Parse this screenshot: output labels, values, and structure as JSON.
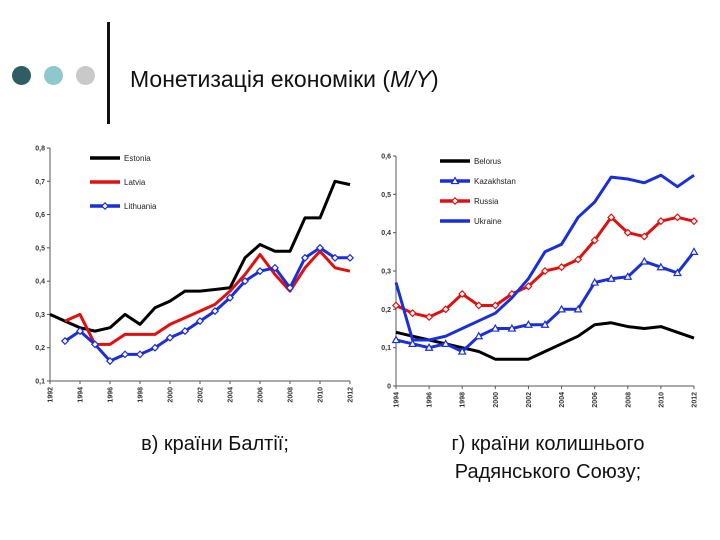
{
  "slide": {
    "title_prefix": "Монетизація економіки (",
    "title_math": "M/Y",
    "title_suffix": ")",
    "caption_left": "в) країни Балтії;",
    "caption_right_line1": "г) країни колишнього",
    "caption_right_line2": "Радянського Союзу;"
  },
  "colors": {
    "dot1": "#2e5e63",
    "dot2": "#8ec7cc",
    "dot3": "#c9c9c9",
    "black": "#000000",
    "red": "#e01010",
    "blue": "#1a2fd8"
  },
  "chart_data": [
    {
      "type": "line",
      "title": "Baltic countries",
      "xlabel": "",
      "ylabel": "",
      "xlim": [
        1992,
        2012
      ],
      "ylim": [
        0.1,
        0.8
      ],
      "x_ticks": [
        "1992",
        "1994",
        "1996",
        "1998",
        "2000",
        "2002",
        "2004",
        "2006",
        "2008",
        "2010",
        "2012"
      ],
      "y_ticks": [
        "0,1",
        "0,2",
        "0,3",
        "0,4",
        "0,5",
        "0,6",
        "0,7",
        "0,8"
      ],
      "x": [
        1992,
        1993,
        1994,
        1995,
        1996,
        1997,
        1998,
        1999,
        2000,
        2001,
        2002,
        2003,
        2004,
        2005,
        2006,
        2007,
        2008,
        2009,
        2010,
        2011,
        2012
      ],
      "series": [
        {
          "name": "Estonia",
          "color": "#000000",
          "marker": "none",
          "values": [
            0.3,
            0.28,
            0.26,
            0.25,
            0.26,
            0.3,
            0.27,
            0.32,
            0.34,
            0.37,
            0.37,
            0.375,
            0.38,
            0.47,
            0.51,
            0.49,
            0.49,
            0.59,
            0.59,
            0.7,
            0.69
          ]
        },
        {
          "name": "Latvia",
          "color": "#e01010",
          "marker": "none",
          "values": [
            null,
            0.28,
            0.3,
            0.21,
            0.21,
            0.24,
            0.24,
            0.24,
            0.27,
            0.29,
            0.31,
            0.33,
            0.37,
            0.42,
            0.48,
            0.42,
            0.37,
            0.44,
            0.49,
            0.44,
            0.43
          ]
        },
        {
          "name": "Lithuania",
          "color": "#1a2fd8",
          "marker": "diamond",
          "values": [
            null,
            0.22,
            0.25,
            0.21,
            0.16,
            0.18,
            0.18,
            0.2,
            0.23,
            0.25,
            0.28,
            0.31,
            0.35,
            0.4,
            0.43,
            0.44,
            0.38,
            0.47,
            0.5,
            0.47,
            0.47
          ]
        }
      ]
    },
    {
      "type": "line",
      "title": "Former Soviet Union countries",
      "xlabel": "",
      "ylabel": "",
      "xlim": [
        1994,
        2012
      ],
      "ylim": [
        0,
        0.6
      ],
      "x_ticks": [
        "1994",
        "1996",
        "1998",
        "2000",
        "2002",
        "2004",
        "2006",
        "2008",
        "2010",
        "2012"
      ],
      "y_ticks": [
        "0",
        "0,1",
        "0,2",
        "0,3",
        "0,4",
        "0,5",
        "0,6"
      ],
      "x": [
        1994,
        1995,
        1996,
        1997,
        1998,
        1999,
        2000,
        2001,
        2002,
        2003,
        2004,
        2005,
        2006,
        2007,
        2008,
        2009,
        2010,
        2011,
        2012
      ],
      "series": [
        {
          "name": "Belorus",
          "color": "#000000",
          "marker": "none",
          "values": [
            0.14,
            0.13,
            0.12,
            0.11,
            0.1,
            0.09,
            0.07,
            0.07,
            0.07,
            0.09,
            0.11,
            0.13,
            0.16,
            0.165,
            0.155,
            0.15,
            0.155,
            0.14,
            0.125
          ]
        },
        {
          "name": "Kazakhstan",
          "color": "#1a2fd8",
          "marker": "triangle",
          "values": [
            0.12,
            0.11,
            0.1,
            0.11,
            0.09,
            0.13,
            0.15,
            0.15,
            0.16,
            0.16,
            0.2,
            0.2,
            0.27,
            0.28,
            0.285,
            0.325,
            0.31,
            0.295,
            0.35
          ]
        },
        {
          "name": "Russia",
          "color": "#e01010",
          "marker": "diamond",
          "values": [
            0.21,
            0.19,
            0.18,
            0.2,
            0.24,
            0.21,
            0.21,
            0.24,
            0.26,
            0.3,
            0.31,
            0.33,
            0.38,
            0.44,
            0.4,
            0.39,
            0.43,
            0.44,
            0.43
          ]
        },
        {
          "name": "Ukraine",
          "color": "#1a2fd8",
          "marker": "none",
          "values": [
            0.27,
            0.12,
            0.12,
            0.13,
            0.15,
            0.17,
            0.19,
            0.23,
            0.28,
            0.35,
            0.37,
            0.44,
            0.48,
            0.545,
            0.54,
            0.53,
            0.55,
            0.52,
            0.55
          ]
        }
      ]
    }
  ]
}
